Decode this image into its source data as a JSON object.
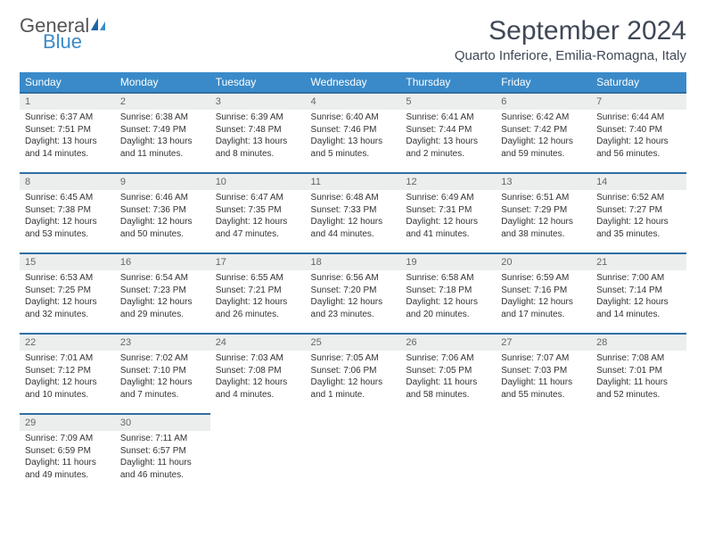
{
  "logo": {
    "general": "General",
    "blue": "Blue"
  },
  "title": "September 2024",
  "location": "Quarto Inferiore, Emilia-Romagna, Italy",
  "weekdays": [
    "Sunday",
    "Monday",
    "Tuesday",
    "Wednesday",
    "Thursday",
    "Friday",
    "Saturday"
  ],
  "colors": {
    "header_bg": "#3a8ac9",
    "daynum_bg": "#eceeee",
    "daynum_border": "#2f6fa3",
    "text": "#333333",
    "title_text": "#404857"
  },
  "days": [
    {
      "n": "1",
      "sr": "Sunrise: 6:37 AM",
      "ss": "Sunset: 7:51 PM",
      "d1": "Daylight: 13 hours",
      "d2": "and 14 minutes."
    },
    {
      "n": "2",
      "sr": "Sunrise: 6:38 AM",
      "ss": "Sunset: 7:49 PM",
      "d1": "Daylight: 13 hours",
      "d2": "and 11 minutes."
    },
    {
      "n": "3",
      "sr": "Sunrise: 6:39 AM",
      "ss": "Sunset: 7:48 PM",
      "d1": "Daylight: 13 hours",
      "d2": "and 8 minutes."
    },
    {
      "n": "4",
      "sr": "Sunrise: 6:40 AM",
      "ss": "Sunset: 7:46 PM",
      "d1": "Daylight: 13 hours",
      "d2": "and 5 minutes."
    },
    {
      "n": "5",
      "sr": "Sunrise: 6:41 AM",
      "ss": "Sunset: 7:44 PM",
      "d1": "Daylight: 13 hours",
      "d2": "and 2 minutes."
    },
    {
      "n": "6",
      "sr": "Sunrise: 6:42 AM",
      "ss": "Sunset: 7:42 PM",
      "d1": "Daylight: 12 hours",
      "d2": "and 59 minutes."
    },
    {
      "n": "7",
      "sr": "Sunrise: 6:44 AM",
      "ss": "Sunset: 7:40 PM",
      "d1": "Daylight: 12 hours",
      "d2": "and 56 minutes."
    },
    {
      "n": "8",
      "sr": "Sunrise: 6:45 AM",
      "ss": "Sunset: 7:38 PM",
      "d1": "Daylight: 12 hours",
      "d2": "and 53 minutes."
    },
    {
      "n": "9",
      "sr": "Sunrise: 6:46 AM",
      "ss": "Sunset: 7:36 PM",
      "d1": "Daylight: 12 hours",
      "d2": "and 50 minutes."
    },
    {
      "n": "10",
      "sr": "Sunrise: 6:47 AM",
      "ss": "Sunset: 7:35 PM",
      "d1": "Daylight: 12 hours",
      "d2": "and 47 minutes."
    },
    {
      "n": "11",
      "sr": "Sunrise: 6:48 AM",
      "ss": "Sunset: 7:33 PM",
      "d1": "Daylight: 12 hours",
      "d2": "and 44 minutes."
    },
    {
      "n": "12",
      "sr": "Sunrise: 6:49 AM",
      "ss": "Sunset: 7:31 PM",
      "d1": "Daylight: 12 hours",
      "d2": "and 41 minutes."
    },
    {
      "n": "13",
      "sr": "Sunrise: 6:51 AM",
      "ss": "Sunset: 7:29 PM",
      "d1": "Daylight: 12 hours",
      "d2": "and 38 minutes."
    },
    {
      "n": "14",
      "sr": "Sunrise: 6:52 AM",
      "ss": "Sunset: 7:27 PM",
      "d1": "Daylight: 12 hours",
      "d2": "and 35 minutes."
    },
    {
      "n": "15",
      "sr": "Sunrise: 6:53 AM",
      "ss": "Sunset: 7:25 PM",
      "d1": "Daylight: 12 hours",
      "d2": "and 32 minutes."
    },
    {
      "n": "16",
      "sr": "Sunrise: 6:54 AM",
      "ss": "Sunset: 7:23 PM",
      "d1": "Daylight: 12 hours",
      "d2": "and 29 minutes."
    },
    {
      "n": "17",
      "sr": "Sunrise: 6:55 AM",
      "ss": "Sunset: 7:21 PM",
      "d1": "Daylight: 12 hours",
      "d2": "and 26 minutes."
    },
    {
      "n": "18",
      "sr": "Sunrise: 6:56 AM",
      "ss": "Sunset: 7:20 PM",
      "d1": "Daylight: 12 hours",
      "d2": "and 23 minutes."
    },
    {
      "n": "19",
      "sr": "Sunrise: 6:58 AM",
      "ss": "Sunset: 7:18 PM",
      "d1": "Daylight: 12 hours",
      "d2": "and 20 minutes."
    },
    {
      "n": "20",
      "sr": "Sunrise: 6:59 AM",
      "ss": "Sunset: 7:16 PM",
      "d1": "Daylight: 12 hours",
      "d2": "and 17 minutes."
    },
    {
      "n": "21",
      "sr": "Sunrise: 7:00 AM",
      "ss": "Sunset: 7:14 PM",
      "d1": "Daylight: 12 hours",
      "d2": "and 14 minutes."
    },
    {
      "n": "22",
      "sr": "Sunrise: 7:01 AM",
      "ss": "Sunset: 7:12 PM",
      "d1": "Daylight: 12 hours",
      "d2": "and 10 minutes."
    },
    {
      "n": "23",
      "sr": "Sunrise: 7:02 AM",
      "ss": "Sunset: 7:10 PM",
      "d1": "Daylight: 12 hours",
      "d2": "and 7 minutes."
    },
    {
      "n": "24",
      "sr": "Sunrise: 7:03 AM",
      "ss": "Sunset: 7:08 PM",
      "d1": "Daylight: 12 hours",
      "d2": "and 4 minutes."
    },
    {
      "n": "25",
      "sr": "Sunrise: 7:05 AM",
      "ss": "Sunset: 7:06 PM",
      "d1": "Daylight: 12 hours",
      "d2": "and 1 minute."
    },
    {
      "n": "26",
      "sr": "Sunrise: 7:06 AM",
      "ss": "Sunset: 7:05 PM",
      "d1": "Daylight: 11 hours",
      "d2": "and 58 minutes."
    },
    {
      "n": "27",
      "sr": "Sunrise: 7:07 AM",
      "ss": "Sunset: 7:03 PM",
      "d1": "Daylight: 11 hours",
      "d2": "and 55 minutes."
    },
    {
      "n": "28",
      "sr": "Sunrise: 7:08 AM",
      "ss": "Sunset: 7:01 PM",
      "d1": "Daylight: 11 hours",
      "d2": "and 52 minutes."
    },
    {
      "n": "29",
      "sr": "Sunrise: 7:09 AM",
      "ss": "Sunset: 6:59 PM",
      "d1": "Daylight: 11 hours",
      "d2": "and 49 minutes."
    },
    {
      "n": "30",
      "sr": "Sunrise: 7:11 AM",
      "ss": "Sunset: 6:57 PM",
      "d1": "Daylight: 11 hours",
      "d2": "and 46 minutes."
    }
  ]
}
